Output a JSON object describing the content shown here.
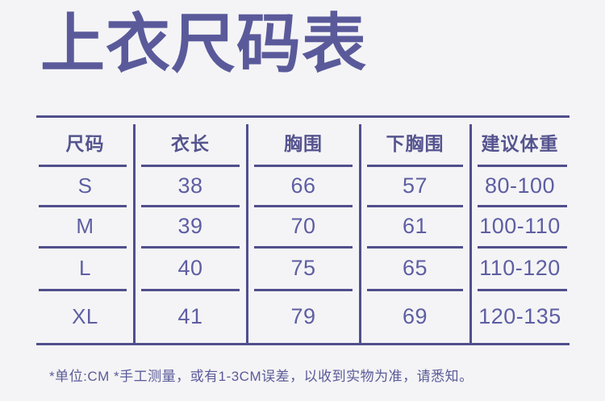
{
  "title": "上衣尺码表",
  "footnote": "*单位:CM *手工测量，或有1-3CM误差，以收到实物为准，请悉知。",
  "colors": {
    "background": "#f4f4f6",
    "line_accent": "#504f8c",
    "title_text": "#5a5a9b",
    "header_text": "#55548f",
    "value_text": "#5e5ea3"
  },
  "chart_data": {
    "type": "table",
    "title": "上衣尺码表",
    "unit": "CM",
    "columns": [
      "尺码",
      "衣长",
      "胸围",
      "下胸围",
      "建议体重"
    ],
    "rows": [
      [
        "S",
        "38",
        "66",
        "57",
        "80-100"
      ],
      [
        "M",
        "39",
        "70",
        "61",
        "100-110"
      ],
      [
        "L",
        "40",
        "75",
        "65",
        "110-120"
      ],
      [
        "XL",
        "41",
        "79",
        "69",
        "120-135"
      ]
    ],
    "footnote": "*单位:CM *手工测量，或有1-3CM误差，以收到实物为准，请悉知。"
  }
}
